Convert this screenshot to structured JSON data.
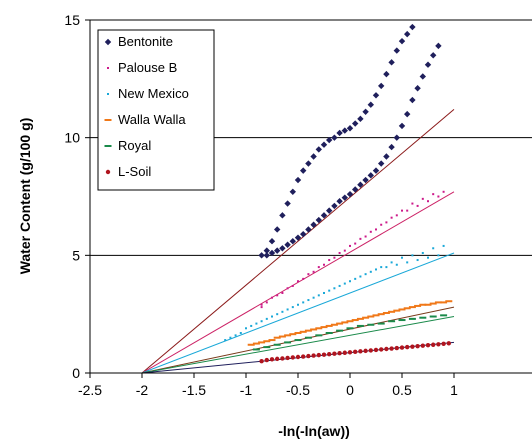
{
  "chart_data": {
    "type": "scatter",
    "title": "",
    "xlabel": "-ln(-ln(aw))",
    "ylabel": "Water Content (g/100 g)",
    "xlim": [
      -2.5,
      1
    ],
    "ylim": [
      0,
      15
    ],
    "x_ticks": [
      "-2.5",
      "-2",
      "-1.5",
      "-1",
      "-0.5",
      "0",
      "0.5",
      "1"
    ],
    "y_ticks": [
      "0",
      "5",
      "10",
      "15"
    ],
    "grid": "horizontal",
    "legend_position": "top-left",
    "series": [
      {
        "name": "Bentonite",
        "color": "#1f1f5c",
        "marker": "diamond",
        "fit_color": "#8b1a1a",
        "points": [
          [
            -0.85,
            5.0
          ],
          [
            -0.8,
            5.2
          ],
          [
            -0.75,
            5.6
          ],
          [
            -0.7,
            6.1
          ],
          [
            -0.65,
            6.7
          ],
          [
            -0.6,
            7.2
          ],
          [
            -0.55,
            7.7
          ],
          [
            -0.5,
            8.2
          ],
          [
            -0.45,
            8.6
          ],
          [
            -0.4,
            8.9
          ],
          [
            -0.35,
            9.2
          ],
          [
            -0.3,
            9.5
          ],
          [
            -0.25,
            9.7
          ],
          [
            -0.2,
            9.9
          ],
          [
            -0.15,
            10.0
          ],
          [
            -0.1,
            10.2
          ],
          [
            -0.05,
            10.3
          ],
          [
            0.0,
            10.4
          ],
          [
            0.05,
            10.6
          ],
          [
            0.1,
            10.8
          ],
          [
            0.15,
            11.1
          ],
          [
            0.2,
            11.4
          ],
          [
            0.25,
            11.8
          ],
          [
            0.3,
            12.2
          ],
          [
            0.35,
            12.7
          ],
          [
            0.4,
            13.2
          ],
          [
            0.45,
            13.7
          ],
          [
            0.5,
            14.1
          ],
          [
            0.55,
            14.4
          ],
          [
            0.6,
            14.7
          ],
          [
            -0.8,
            5.0
          ],
          [
            -0.75,
            5.1
          ],
          [
            -0.7,
            5.2
          ],
          [
            -0.65,
            5.3
          ],
          [
            -0.6,
            5.45
          ],
          [
            -0.55,
            5.6
          ],
          [
            -0.5,
            5.75
          ],
          [
            -0.45,
            5.9
          ],
          [
            -0.4,
            6.1
          ],
          [
            -0.35,
            6.3
          ],
          [
            -0.3,
            6.5
          ],
          [
            -0.25,
            6.7
          ],
          [
            -0.2,
            6.9
          ],
          [
            -0.15,
            7.1
          ],
          [
            -0.1,
            7.3
          ],
          [
            -0.05,
            7.45
          ],
          [
            0.0,
            7.6
          ],
          [
            0.05,
            7.8
          ],
          [
            0.1,
            8.0
          ],
          [
            0.15,
            8.2
          ],
          [
            0.2,
            8.4
          ],
          [
            0.25,
            8.6
          ],
          [
            0.3,
            8.9
          ],
          [
            0.35,
            9.2
          ],
          [
            0.4,
            9.6
          ],
          [
            0.45,
            10.0
          ],
          [
            0.5,
            10.5
          ],
          [
            0.55,
            11.0
          ],
          [
            0.6,
            11.6
          ],
          [
            0.65,
            12.1
          ],
          [
            0.7,
            12.6
          ],
          [
            0.75,
            13.1
          ],
          [
            0.8,
            13.5
          ],
          [
            0.85,
            13.9
          ]
        ],
        "fit_line": [
          [
            -2.0,
            0.0
          ],
          [
            1.0,
            11.2
          ]
        ]
      },
      {
        "name": "Palouse B",
        "color": "#cc1a8a",
        "marker": "dot",
        "fit_color": "#cc2266",
        "points": [
          [
            -0.85,
            2.8
          ],
          [
            -0.8,
            3.0
          ],
          [
            -0.7,
            3.3
          ],
          [
            -0.6,
            3.6
          ],
          [
            -0.5,
            3.9
          ],
          [
            -0.4,
            4.2
          ],
          [
            -0.3,
            4.5
          ],
          [
            -0.2,
            4.8
          ],
          [
            -0.1,
            5.1
          ],
          [
            0.0,
            5.4
          ],
          [
            0.1,
            5.7
          ],
          [
            0.2,
            6.0
          ],
          [
            0.3,
            6.3
          ],
          [
            0.4,
            6.6
          ],
          [
            0.5,
            6.9
          ],
          [
            0.6,
            7.2
          ],
          [
            0.7,
            7.4
          ],
          [
            0.8,
            7.6
          ],
          [
            0.9,
            7.7
          ],
          [
            -0.85,
            2.9
          ],
          [
            -0.75,
            3.2
          ],
          [
            -0.65,
            3.4
          ],
          [
            -0.55,
            3.7
          ],
          [
            -0.45,
            4.0
          ],
          [
            -0.35,
            4.3
          ],
          [
            -0.25,
            4.6
          ],
          [
            -0.15,
            4.9
          ],
          [
            -0.05,
            5.2
          ],
          [
            0.05,
            5.5
          ],
          [
            0.15,
            5.8
          ],
          [
            0.25,
            6.1
          ],
          [
            0.35,
            6.4
          ],
          [
            0.45,
            6.7
          ],
          [
            0.55,
            6.9
          ],
          [
            0.65,
            7.1
          ],
          [
            0.75,
            7.3
          ],
          [
            0.85,
            7.5
          ]
        ],
        "fit_line": [
          [
            -2.0,
            0.0
          ],
          [
            1.0,
            7.7
          ]
        ]
      },
      {
        "name": "New Mexico",
        "color": "#1aa8d8",
        "marker": "dot",
        "fit_color": "#1aa8d8",
        "points": [
          [
            -1.2,
            1.4
          ],
          [
            -1.1,
            1.6
          ],
          [
            -1.0,
            1.9
          ],
          [
            -0.9,
            2.1
          ],
          [
            -0.8,
            2.3
          ],
          [
            -0.7,
            2.5
          ],
          [
            -0.6,
            2.7
          ],
          [
            -0.5,
            2.9
          ],
          [
            -0.4,
            3.1
          ],
          [
            -0.3,
            3.3
          ],
          [
            -0.2,
            3.5
          ],
          [
            -0.1,
            3.7
          ],
          [
            0.0,
            3.9
          ],
          [
            0.1,
            4.1
          ],
          [
            0.2,
            4.3
          ],
          [
            0.3,
            4.5
          ],
          [
            0.4,
            4.7
          ],
          [
            0.5,
            4.9
          ],
          [
            0.6,
            5.0
          ],
          [
            0.7,
            5.1
          ],
          [
            0.8,
            5.3
          ],
          [
            0.9,
            5.4
          ],
          [
            -1.15,
            1.5
          ],
          [
            -1.05,
            1.7
          ],
          [
            -0.95,
            2.0
          ],
          [
            -0.85,
            2.2
          ],
          [
            -0.75,
            2.4
          ],
          [
            -0.65,
            2.6
          ],
          [
            -0.55,
            2.8
          ],
          [
            -0.45,
            3.0
          ],
          [
            -0.35,
            3.2
          ],
          [
            -0.25,
            3.4
          ],
          [
            -0.15,
            3.6
          ],
          [
            -0.05,
            3.8
          ],
          [
            0.05,
            4.0
          ],
          [
            0.15,
            4.2
          ],
          [
            0.25,
            4.4
          ],
          [
            0.35,
            4.5
          ],
          [
            0.45,
            4.6
          ],
          [
            0.55,
            4.7
          ],
          [
            0.65,
            4.8
          ],
          [
            0.75,
            4.9
          ],
          [
            0.85,
            5.0
          ]
        ],
        "fit_line": [
          [
            -2.0,
            0.0
          ],
          [
            1.0,
            5.1
          ]
        ]
      },
      {
        "name": "Walla Walla",
        "color": "#f07818",
        "marker": "dash",
        "fit_color": "#7a3a1a",
        "points": [
          [
            -0.95,
            1.2
          ],
          [
            -0.9,
            1.25
          ],
          [
            -0.85,
            1.3
          ],
          [
            -0.8,
            1.35
          ],
          [
            -0.75,
            1.4
          ],
          [
            -0.7,
            1.5
          ],
          [
            -0.65,
            1.55
          ],
          [
            -0.6,
            1.6
          ],
          [
            -0.55,
            1.65
          ],
          [
            -0.5,
            1.7
          ],
          [
            -0.45,
            1.75
          ],
          [
            -0.4,
            1.8
          ],
          [
            -0.35,
            1.85
          ],
          [
            -0.3,
            1.9
          ],
          [
            -0.25,
            1.95
          ],
          [
            -0.2,
            2.0
          ],
          [
            -0.15,
            2.05
          ],
          [
            -0.1,
            2.1
          ],
          [
            -0.05,
            2.15
          ],
          [
            0.0,
            2.2
          ],
          [
            0.05,
            2.25
          ],
          [
            0.1,
            2.3
          ],
          [
            0.15,
            2.35
          ],
          [
            0.2,
            2.4
          ],
          [
            0.25,
            2.45
          ],
          [
            0.3,
            2.5
          ],
          [
            0.35,
            2.55
          ],
          [
            0.4,
            2.6
          ],
          [
            0.45,
            2.65
          ],
          [
            0.5,
            2.7
          ],
          [
            0.55,
            2.75
          ],
          [
            0.6,
            2.8
          ],
          [
            0.65,
            2.85
          ],
          [
            0.7,
            2.9
          ],
          [
            0.75,
            2.9
          ],
          [
            0.8,
            2.95
          ],
          [
            0.85,
            3.0
          ],
          [
            0.9,
            3.0
          ],
          [
            0.95,
            3.05
          ]
        ],
        "fit_line": [
          [
            -2.0,
            0.0
          ],
          [
            1.0,
            2.8
          ]
        ]
      },
      {
        "name": "Royal",
        "color": "#1a8a4a",
        "marker": "dash",
        "fit_color": "#1a8a4a",
        "points": [
          [
            -0.9,
            1.0
          ],
          [
            -0.8,
            1.1
          ],
          [
            -0.7,
            1.2
          ],
          [
            -0.6,
            1.3
          ],
          [
            -0.5,
            1.4
          ],
          [
            -0.4,
            1.5
          ],
          [
            -0.3,
            1.6
          ],
          [
            -0.2,
            1.7
          ],
          [
            -0.1,
            1.8
          ],
          [
            0.0,
            1.9
          ],
          [
            0.1,
            2.0
          ],
          [
            0.2,
            2.05
          ],
          [
            0.3,
            2.1
          ],
          [
            0.4,
            2.2
          ],
          [
            0.5,
            2.25
          ],
          [
            0.6,
            2.3
          ],
          [
            0.7,
            2.35
          ],
          [
            0.8,
            2.4
          ],
          [
            0.9,
            2.45
          ]
        ],
        "fit_line": [
          [
            -2.0,
            0.0
          ],
          [
            1.0,
            2.4
          ]
        ]
      },
      {
        "name": "L-Soil",
        "color": "#b0141e",
        "marker": "circle",
        "fit_color": "#1f1f5c",
        "points": [
          [
            -0.85,
            0.5
          ],
          [
            -0.8,
            0.55
          ],
          [
            -0.75,
            0.58
          ],
          [
            -0.7,
            0.6
          ],
          [
            -0.65,
            0.62
          ],
          [
            -0.6,
            0.64
          ],
          [
            -0.55,
            0.66
          ],
          [
            -0.5,
            0.68
          ],
          [
            -0.45,
            0.7
          ],
          [
            -0.4,
            0.72
          ],
          [
            -0.35,
            0.74
          ],
          [
            -0.3,
            0.76
          ],
          [
            -0.25,
            0.78
          ],
          [
            -0.2,
            0.8
          ],
          [
            -0.15,
            0.82
          ],
          [
            -0.1,
            0.84
          ],
          [
            -0.05,
            0.86
          ],
          [
            0.0,
            0.88
          ],
          [
            0.05,
            0.9
          ],
          [
            0.1,
            0.92
          ],
          [
            0.15,
            0.94
          ],
          [
            0.2,
            0.96
          ],
          [
            0.25,
            0.98
          ],
          [
            0.3,
            1.0
          ],
          [
            0.35,
            1.02
          ],
          [
            0.4,
            1.04
          ],
          [
            0.45,
            1.06
          ],
          [
            0.5,
            1.08
          ],
          [
            0.55,
            1.1
          ],
          [
            0.6,
            1.12
          ],
          [
            0.65,
            1.14
          ],
          [
            0.7,
            1.16
          ],
          [
            0.75,
            1.18
          ],
          [
            0.8,
            1.2
          ],
          [
            0.85,
            1.22
          ],
          [
            0.9,
            1.24
          ],
          [
            0.95,
            1.26
          ]
        ],
        "fit_line": [
          [
            -2.0,
            0.0
          ],
          [
            1.0,
            1.3
          ]
        ]
      }
    ]
  }
}
